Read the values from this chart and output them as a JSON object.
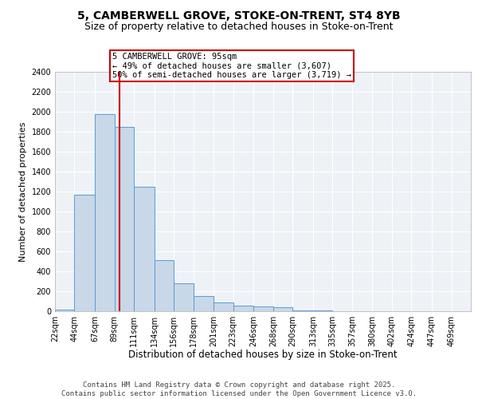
{
  "title": "5, CAMBERWELL GROVE, STOKE-ON-TRENT, ST4 8YB",
  "subtitle": "Size of property relative to detached houses in Stoke-on-Trent",
  "xlabel": "Distribution of detached houses by size in Stoke-on-Trent",
  "ylabel": "Number of detached properties",
  "bar_values": [
    20,
    1170,
    1980,
    1850,
    1245,
    515,
    280,
    155,
    90,
    55,
    45,
    40,
    12,
    5,
    2,
    2,
    1,
    0,
    1,
    0,
    0
  ],
  "bar_left_edges": [
    22,
    44,
    67,
    89,
    111,
    134,
    156,
    178,
    201,
    223,
    246,
    268,
    290,
    313,
    335,
    357,
    380,
    402,
    424,
    447,
    469
  ],
  "bar_widths": [
    22,
    23,
    22,
    22,
    23,
    22,
    22,
    23,
    22,
    23,
    22,
    22,
    23,
    22,
    22,
    23,
    22,
    22,
    23,
    22,
    22
  ],
  "bar_color": "#c8d8e8",
  "bar_edge_color": "#5b9bd5",
  "property_value": 95,
  "annotation_line1": "5 CAMBERWELL GROVE: 95sqm",
  "annotation_line2": "← 49% of detached houses are smaller (3,607)",
  "annotation_line3": "50% of semi-detached houses are larger (3,719) →",
  "annotation_box_color": "#ffffff",
  "annotation_box_edge_color": "#cc0000",
  "vline_color": "#cc0000",
  "ylim": [
    0,
    2400
  ],
  "yticks": [
    0,
    200,
    400,
    600,
    800,
    1000,
    1200,
    1400,
    1600,
    1800,
    2000,
    2200,
    2400
  ],
  "x_tick_labels": [
    "22sqm",
    "44sqm",
    "67sqm",
    "89sqm",
    "111sqm",
    "134sqm",
    "156sqm",
    "178sqm",
    "201sqm",
    "223sqm",
    "246sqm",
    "268sqm",
    "290sqm",
    "313sqm",
    "335sqm",
    "357sqm",
    "380sqm",
    "402sqm",
    "424sqm",
    "447sqm",
    "469sqm"
  ],
  "background_color": "#eef2f7",
  "grid_color": "#ffffff",
  "footer_text": "Contains HM Land Registry data © Crown copyright and database right 2025.\nContains public sector information licensed under the Open Government Licence v3.0.",
  "title_fontsize": 10,
  "subtitle_fontsize": 9,
  "xlabel_fontsize": 8.5,
  "ylabel_fontsize": 8,
  "tick_fontsize": 7,
  "annotation_fontsize": 7.5,
  "footer_fontsize": 6.5
}
